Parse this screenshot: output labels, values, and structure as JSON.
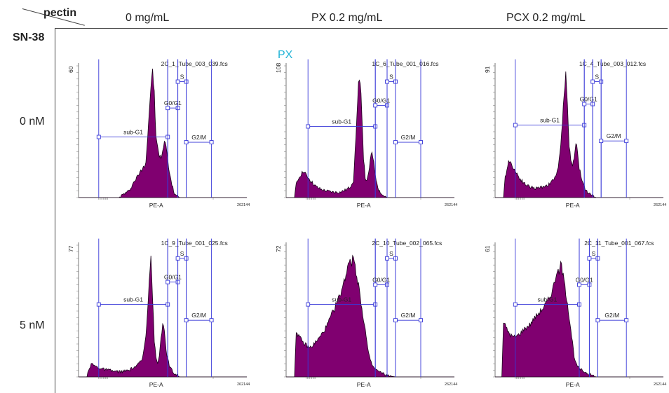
{
  "header": {
    "corner_top": "pectin",
    "corner_bottom": "SN-38",
    "columns": [
      "0 mg/mL",
      "PX 0.2 mg/mL",
      "PCX 0.2 mg/mL"
    ],
    "rows": [
      "0 nM",
      "5 nM"
    ],
    "overlay_label": "PX"
  },
  "colors": {
    "fill": "#800070",
    "gate": "#3838d8",
    "overlay": "#1fb3d6"
  },
  "chart_data": [
    {
      "type": "area",
      "file": "2C_1_Tube_003_039.fcs",
      "xlabel": "PE-A",
      "x_max_label": "262144",
      "ymax": 60,
      "gates": [
        "sub-G1",
        "G0/G1",
        "S",
        "G2/M"
      ],
      "curve": [
        [
          0.0,
          0.0
        ],
        [
          0.06,
          0.0
        ],
        [
          0.24,
          0.0
        ],
        [
          0.26,
          0.02
        ],
        [
          0.3,
          0.05
        ],
        [
          0.33,
          0.12
        ],
        [
          0.36,
          0.18
        ],
        [
          0.38,
          0.22
        ],
        [
          0.4,
          0.27
        ],
        [
          0.41,
          0.45
        ],
        [
          0.42,
          0.65
        ],
        [
          0.43,
          0.85
        ],
        [
          0.44,
          0.95
        ],
        [
          0.45,
          0.8
        ],
        [
          0.46,
          0.45
        ],
        [
          0.47,
          0.38
        ],
        [
          0.48,
          0.32
        ],
        [
          0.49,
          0.3
        ],
        [
          0.5,
          0.34
        ],
        [
          0.51,
          0.44
        ],
        [
          0.52,
          0.4
        ],
        [
          0.53,
          0.28
        ],
        [
          0.55,
          0.12
        ],
        [
          0.57,
          0.03
        ],
        [
          0.6,
          0.0
        ],
        [
          1.0,
          0.0
        ]
      ]
    },
    {
      "type": "area",
      "file": "1C_6_Tube_001_016.fcs",
      "xlabel": "PE-A",
      "x_max_label": "262144",
      "ymax": 108,
      "gates": [
        "sub-G1",
        "G0/G1",
        "S",
        "G2/M"
      ],
      "curve": [
        [
          0.0,
          0.0
        ],
        [
          0.05,
          0.0
        ],
        [
          0.06,
          0.1
        ],
        [
          0.08,
          0.16
        ],
        [
          0.1,
          0.2
        ],
        [
          0.12,
          0.17
        ],
        [
          0.15,
          0.12
        ],
        [
          0.18,
          0.08
        ],
        [
          0.21,
          0.06
        ],
        [
          0.24,
          0.05
        ],
        [
          0.28,
          0.04
        ],
        [
          0.32,
          0.04
        ],
        [
          0.36,
          0.06
        ],
        [
          0.38,
          0.08
        ],
        [
          0.4,
          0.13
        ],
        [
          0.41,
          0.35
        ],
        [
          0.42,
          0.6
        ],
        [
          0.43,
          0.85
        ],
        [
          0.44,
          0.9
        ],
        [
          0.45,
          0.65
        ],
        [
          0.46,
          0.3
        ],
        [
          0.47,
          0.15
        ],
        [
          0.48,
          0.12
        ],
        [
          0.49,
          0.18
        ],
        [
          0.5,
          0.28
        ],
        [
          0.51,
          0.34
        ],
        [
          0.52,
          0.28
        ],
        [
          0.53,
          0.16
        ],
        [
          0.55,
          0.06
        ],
        [
          0.57,
          0.02
        ],
        [
          0.6,
          0.0
        ],
        [
          1.0,
          0.0
        ]
      ]
    },
    {
      "type": "area",
      "file": "1C_4_Tube_003_012.fcs",
      "xlabel": "PE-A",
      "x_max_label": "262144",
      "ymax": 91,
      "gates": [
        "sub-G1",
        "G0/G1",
        "S",
        "G2/M"
      ],
      "curve": [
        [
          0.0,
          0.0
        ],
        [
          0.05,
          0.0
        ],
        [
          0.06,
          0.15
        ],
        [
          0.08,
          0.28
        ],
        [
          0.1,
          0.25
        ],
        [
          0.12,
          0.2
        ],
        [
          0.15,
          0.14
        ],
        [
          0.18,
          0.1
        ],
        [
          0.21,
          0.08
        ],
        [
          0.24,
          0.07
        ],
        [
          0.28,
          0.08
        ],
        [
          0.32,
          0.1
        ],
        [
          0.35,
          0.14
        ],
        [
          0.37,
          0.2
        ],
        [
          0.38,
          0.27
        ],
        [
          0.39,
          0.38
        ],
        [
          0.4,
          0.58
        ],
        [
          0.41,
          0.8
        ],
        [
          0.42,
          0.93
        ],
        [
          0.43,
          0.72
        ],
        [
          0.44,
          0.4
        ],
        [
          0.45,
          0.28
        ],
        [
          0.46,
          0.24
        ],
        [
          0.47,
          0.3
        ],
        [
          0.48,
          0.42
        ],
        [
          0.49,
          0.36
        ],
        [
          0.5,
          0.22
        ],
        [
          0.52,
          0.12
        ],
        [
          0.54,
          0.05
        ],
        [
          0.57,
          0.02
        ],
        [
          0.6,
          0.0
        ],
        [
          1.0,
          0.0
        ]
      ]
    },
    {
      "type": "area",
      "file": "1C_9_Tube_001_025.fcs",
      "xlabel": "PE-A",
      "x_max_label": "262144",
      "ymax": 77,
      "gates": [
        "sub-G1",
        "G0/G1",
        "S",
        "G2/M"
      ],
      "curve": [
        [
          0.0,
          0.0
        ],
        [
          0.05,
          0.0
        ],
        [
          0.06,
          0.06
        ],
        [
          0.08,
          0.1
        ],
        [
          0.1,
          0.08
        ],
        [
          0.14,
          0.06
        ],
        [
          0.18,
          0.05
        ],
        [
          0.22,
          0.04
        ],
        [
          0.26,
          0.04
        ],
        [
          0.3,
          0.05
        ],
        [
          0.34,
          0.08
        ],
        [
          0.36,
          0.1
        ],
        [
          0.38,
          0.14
        ],
        [
          0.39,
          0.22
        ],
        [
          0.4,
          0.32
        ],
        [
          0.41,
          0.5
        ],
        [
          0.42,
          0.75
        ],
        [
          0.43,
          0.92
        ],
        [
          0.44,
          0.6
        ],
        [
          0.45,
          0.28
        ],
        [
          0.46,
          0.14
        ],
        [
          0.47,
          0.1
        ],
        [
          0.48,
          0.16
        ],
        [
          0.49,
          0.3
        ],
        [
          0.5,
          0.4
        ],
        [
          0.51,
          0.34
        ],
        [
          0.52,
          0.2
        ],
        [
          0.54,
          0.08
        ],
        [
          0.57,
          0.02
        ],
        [
          0.6,
          0.0
        ],
        [
          1.0,
          0.0
        ]
      ]
    },
    {
      "type": "area",
      "file": "2C_10_Tube_002_065.fcs",
      "xlabel": "PE-A",
      "x_max_label": "262144",
      "ymax": 72,
      "gates": [
        "sub-G1",
        "G0/G1",
        "S",
        "G2/M"
      ],
      "curve": [
        [
          0.0,
          0.0
        ],
        [
          0.05,
          0.0
        ],
        [
          0.06,
          0.35
        ],
        [
          0.08,
          0.3
        ],
        [
          0.1,
          0.26
        ],
        [
          0.12,
          0.24
        ],
        [
          0.14,
          0.22
        ],
        [
          0.16,
          0.24
        ],
        [
          0.18,
          0.27
        ],
        [
          0.2,
          0.3
        ],
        [
          0.22,
          0.34
        ],
        [
          0.24,
          0.38
        ],
        [
          0.26,
          0.44
        ],
        [
          0.28,
          0.5
        ],
        [
          0.3,
          0.56
        ],
        [
          0.32,
          0.62
        ],
        [
          0.34,
          0.7
        ],
        [
          0.36,
          0.8
        ],
        [
          0.37,
          0.87
        ],
        [
          0.38,
          0.9
        ],
        [
          0.39,
          0.86
        ],
        [
          0.4,
          0.92
        ],
        [
          0.41,
          0.84
        ],
        [
          0.42,
          0.76
        ],
        [
          0.43,
          0.7
        ],
        [
          0.44,
          0.62
        ],
        [
          0.45,
          0.52
        ],
        [
          0.46,
          0.44
        ],
        [
          0.47,
          0.36
        ],
        [
          0.48,
          0.26
        ],
        [
          0.49,
          0.18
        ],
        [
          0.5,
          0.12
        ],
        [
          0.52,
          0.07
        ],
        [
          0.55,
          0.04
        ],
        [
          0.6,
          0.01
        ],
        [
          0.65,
          0.0
        ],
        [
          1.0,
          0.0
        ]
      ]
    },
    {
      "type": "area",
      "file": "2C_11_Tube_001_067.fcs",
      "xlabel": "PE-A",
      "x_max_label": "262144",
      "ymax": 61,
      "gates": [
        "sub-G1",
        "G0/G1",
        "S",
        "G2/M"
      ],
      "curve": [
        [
          0.0,
          0.0
        ],
        [
          0.04,
          0.0
        ],
        [
          0.05,
          0.42
        ],
        [
          0.07,
          0.36
        ],
        [
          0.09,
          0.32
        ],
        [
          0.11,
          0.3
        ],
        [
          0.13,
          0.31
        ],
        [
          0.15,
          0.33
        ],
        [
          0.17,
          0.36
        ],
        [
          0.19,
          0.38
        ],
        [
          0.21,
          0.4
        ],
        [
          0.23,
          0.44
        ],
        [
          0.25,
          0.47
        ],
        [
          0.27,
          0.5
        ],
        [
          0.29,
          0.53
        ],
        [
          0.31,
          0.57
        ],
        [
          0.33,
          0.62
        ],
        [
          0.35,
          0.7
        ],
        [
          0.37,
          0.82
        ],
        [
          0.38,
          0.76
        ],
        [
          0.39,
          0.88
        ],
        [
          0.4,
          0.8
        ],
        [
          0.41,
          0.72
        ],
        [
          0.42,
          0.64
        ],
        [
          0.43,
          0.56
        ],
        [
          0.44,
          0.46
        ],
        [
          0.45,
          0.36
        ],
        [
          0.46,
          0.26
        ],
        [
          0.47,
          0.16
        ],
        [
          0.48,
          0.1
        ],
        [
          0.5,
          0.06
        ],
        [
          0.53,
          0.04
        ],
        [
          0.56,
          0.02
        ],
        [
          0.6,
          0.0
        ],
        [
          1.0,
          0.0
        ]
      ]
    }
  ]
}
